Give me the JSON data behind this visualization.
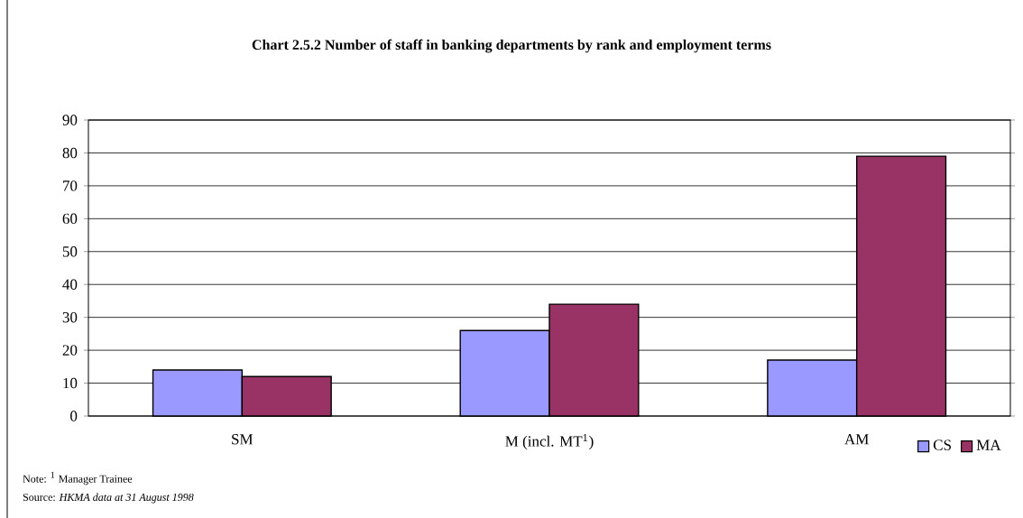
{
  "chart_data": {
    "type": "bar",
    "title": "Chart 2.5.2 Number of staff in banking departments by rank and employment terms",
    "categories": [
      "SM",
      "M (incl. MT$^{1}$)",
      "AM"
    ],
    "series": [
      {
        "name": "CS",
        "color": "#9999ff",
        "values": [
          14,
          26,
          17
        ]
      },
      {
        "name": "MA",
        "color": "#993366",
        "values": [
          12,
          34,
          79
        ]
      }
    ],
    "ylim": [
      0,
      90
    ],
    "yticks": [
      0,
      10,
      20,
      30,
      40,
      50,
      60,
      70,
      80,
      90
    ],
    "grid": "y",
    "legend": "bottom right",
    "annotations": [
      "Note:   $^{1}$ Manager Trainee",
      "Source:  *HKMA data at 31 August 1998*"
    ]
  }
}
